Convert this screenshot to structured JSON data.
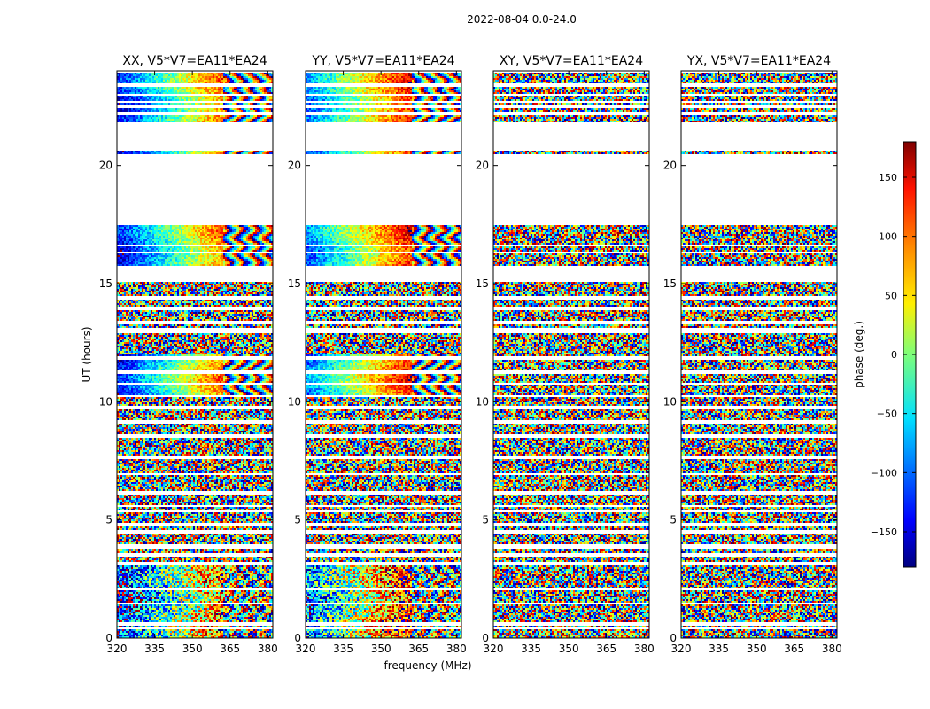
{
  "figure": {
    "suptitle": "2022-08-04 0.0-24.0"
  },
  "chart_data": {
    "type": "heatmap",
    "description_axes": {
      "xlabel": "frequency (MHz)",
      "ylabel": "UT (hours)",
      "xlim": [
        320,
        382
      ],
      "ylim": [
        0,
        24
      ],
      "xticks": [
        320,
        335,
        350,
        365,
        380
      ],
      "yticks": [
        0,
        5,
        10,
        15,
        20
      ]
    },
    "panels": [
      {
        "title": "XX, V5*V7=EA11*EA24",
        "structure": "coherent"
      },
      {
        "title": "YY, V5*V7=EA11*EA24",
        "structure": "coherent"
      },
      {
        "title": "XY, V5*V7=EA11*EA24",
        "structure": "noise"
      },
      {
        "title": "YX, V5*V7=EA11*EA24",
        "structure": "noise"
      }
    ],
    "data_blocks_ut_hours": [
      [
        0.0,
        0.35
      ],
      [
        0.45,
        0.55
      ],
      [
        0.65,
        1.4
      ],
      [
        1.5,
        2.0
      ],
      [
        2.1,
        3.05
      ],
      [
        3.2,
        3.45
      ],
      [
        3.6,
        3.75
      ],
      [
        3.95,
        4.45
      ],
      [
        4.55,
        4.75
      ],
      [
        4.85,
        5.3
      ],
      [
        5.4,
        5.55
      ],
      [
        5.65,
        6.1
      ],
      [
        6.2,
        6.9
      ],
      [
        7.0,
        7.55
      ],
      [
        7.7,
        8.5
      ],
      [
        8.6,
        9.1
      ],
      [
        9.2,
        9.7
      ],
      [
        9.8,
        10.2
      ],
      [
        10.3,
        10.7
      ],
      [
        10.8,
        11.2
      ],
      [
        11.3,
        11.75
      ],
      [
        11.95,
        12.9
      ],
      [
        13.1,
        13.3
      ],
      [
        13.45,
        13.9
      ],
      [
        14.05,
        14.3
      ],
      [
        14.45,
        15.05
      ],
      [
        15.75,
        16.25
      ],
      [
        16.35,
        16.55
      ],
      [
        16.65,
        17.5
      ],
      [
        20.45,
        20.6
      ],
      [
        21.85,
        22.1
      ],
      [
        22.3,
        22.45
      ],
      [
        22.55,
        22.65
      ],
      [
        22.75,
        22.95
      ],
      [
        23.05,
        23.35
      ],
      [
        23.45,
        23.9
      ]
    ],
    "colorbar": {
      "label": "phase (deg.)",
      "range": [
        -180,
        180
      ],
      "ticks": [
        150,
        100,
        50,
        0,
        -50,
        -100,
        -150
      ],
      "colormap": "jet"
    }
  }
}
